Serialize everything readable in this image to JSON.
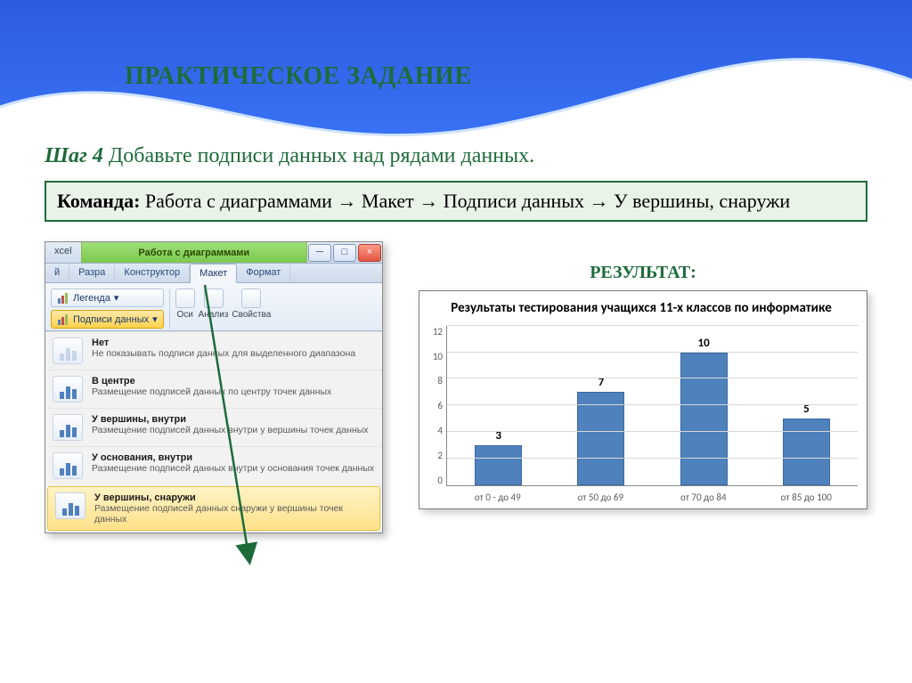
{
  "slide": {
    "title": "ПРАКТИЧЕСКОЕ ЗАДАНИЕ",
    "title_color": "#1e6b3a",
    "step_prefix": "Шаг 4",
    "step_text": " Добавьте подписи данных над рядами данных.",
    "command_label": "Команда:",
    "command_text": " Работа с диаграммами → Макет → Подписи данных → У вершины, снаружи",
    "command_box_bg": "#eaf3e8",
    "command_box_border": "#1e6b3a",
    "bg_gradient": [
      "#2c5be0",
      "#3e7dff",
      "#5db1ff"
    ]
  },
  "excel": {
    "app_caption": "xcel",
    "contextual_title": "Работа с диаграммами",
    "tabs_row1": [
      "й",
      "Разра"
    ],
    "context_tabs": [
      "Конструктор",
      "Макет",
      "Формат"
    ],
    "active_context_tab": "Макет",
    "ribbon_buttons": {
      "legend": "Легенда",
      "data_labels": "Подписи данных",
      "group_right": [
        "Оси",
        "Анализ",
        "Свойства"
      ]
    },
    "menu": [
      {
        "title": "Нет",
        "desc": "Не показывать подписи данных для выделенного диапазона",
        "icon": "none"
      },
      {
        "title": "В центре",
        "desc": "Размещение подписей данных по центру точек данных",
        "icon": "bars"
      },
      {
        "title": "У вершины, внутри",
        "desc": "Размещение подписей данных внутри у вершины точек данных",
        "icon": "bars"
      },
      {
        "title": "У основания, внутри",
        "desc": "Размещение подписей данных внутри у основания точек данных",
        "icon": "bars"
      },
      {
        "title": "У вершины, снаружи",
        "desc": "Размещение подписей данных снаружи у вершины точек данных",
        "icon": "bars",
        "selected": true
      }
    ]
  },
  "result": {
    "heading": "РЕЗУЛЬТАТ:",
    "chart": {
      "type": "bar",
      "title": "Результаты тестирования учащихся 11-х классов по информатике",
      "categories": [
        "от 0 - до 49",
        "от 50 до 69",
        "от 70 до 84",
        "от 85 до 100"
      ],
      "values": [
        3,
        7,
        10,
        5
      ],
      "value_labels": [
        "3",
        "7",
        "10",
        "5"
      ],
      "ylim": [
        0,
        12
      ],
      "ytick_step": 2,
      "yticks": [
        "0",
        "2",
        "4",
        "6",
        "8",
        "10",
        "12"
      ],
      "bar_color": "#4f81bd",
      "bar_border": "#3a6aa0",
      "grid_color": "#d8d8d8",
      "axis_color": "#888888",
      "background_color": "#ffffff",
      "title_fontsize": 15,
      "label_fontsize": 13,
      "tick_fontsize": 11
    }
  },
  "arrow": {
    "color": "#1e6b3a"
  }
}
